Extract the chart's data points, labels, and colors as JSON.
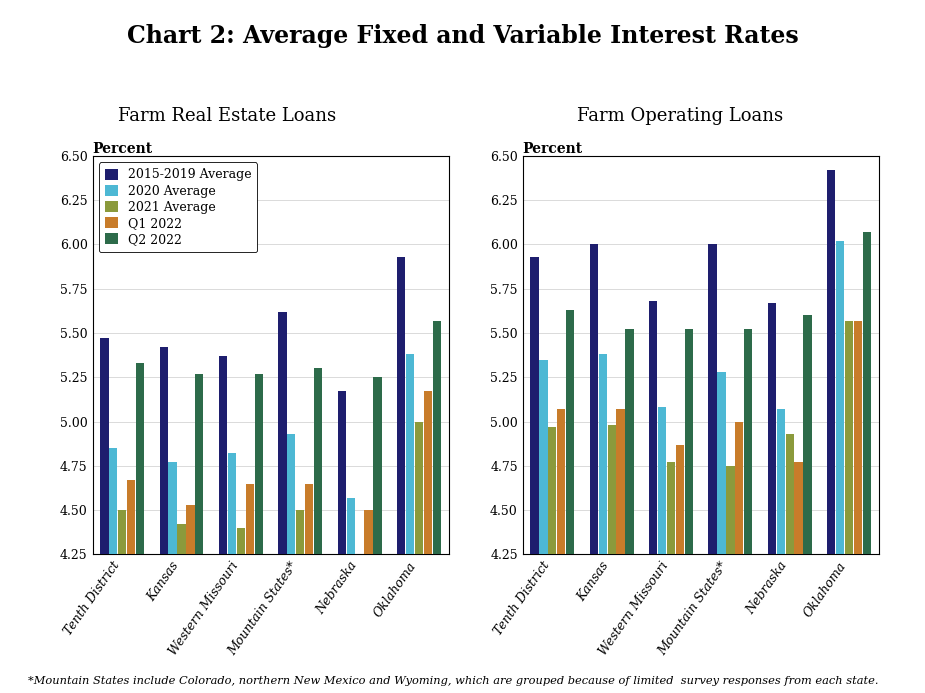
{
  "title": "Chart 2: Average Fixed and Variable Interest Rates",
  "subtitle_left": "Farm Real Estate Loans",
  "subtitle_right": "Farm Operating Loans",
  "footnote": "*Mountain States include Colorado, northern New Mexico and Wyoming, which are grouped because of limited  survey responses from each state.",
  "categories": [
    "Tenth District",
    "Kansas",
    "Western Missouri",
    "Mountain States*",
    "Nebraska",
    "Oklahoma"
  ],
  "legend_labels": [
    "2015-2019 Average",
    "2020 Average",
    "2021 Average",
    "Q1 2022",
    "Q2 2022"
  ],
  "colors": [
    "#1e1e6e",
    "#4db8d4",
    "#8b9a3c",
    "#c87c2a",
    "#2d6b4a"
  ],
  "real_estate": {
    "2015_2019": [
      5.47,
      5.42,
      5.37,
      5.62,
      5.17,
      5.93
    ],
    "2020": [
      4.85,
      4.77,
      4.82,
      4.93,
      4.57,
      5.38
    ],
    "2021": [
      4.5,
      4.42,
      4.4,
      4.5,
      4.25,
      5.0
    ],
    "Q1_2022": [
      4.67,
      4.53,
      4.65,
      4.65,
      4.5,
      5.17
    ],
    "Q2_2022": [
      5.33,
      5.27,
      5.27,
      5.3,
      5.25,
      5.57
    ]
  },
  "operating": {
    "2015_2019": [
      5.93,
      6.0,
      5.68,
      6.0,
      5.67,
      6.42
    ],
    "2020": [
      5.35,
      5.38,
      5.08,
      5.28,
      5.07,
      6.02
    ],
    "2021": [
      4.97,
      4.98,
      4.77,
      4.75,
      4.93,
      5.57
    ],
    "Q1_2022": [
      5.07,
      5.07,
      4.87,
      5.0,
      4.77,
      5.57
    ],
    "Q2_2022": [
      5.63,
      5.52,
      5.52,
      5.52,
      5.6,
      6.07
    ]
  },
  "ylim": [
    4.25,
    6.5
  ],
  "yticks": [
    4.25,
    4.5,
    4.75,
    5.0,
    5.25,
    5.5,
    5.75,
    6.0,
    6.25,
    6.5
  ]
}
